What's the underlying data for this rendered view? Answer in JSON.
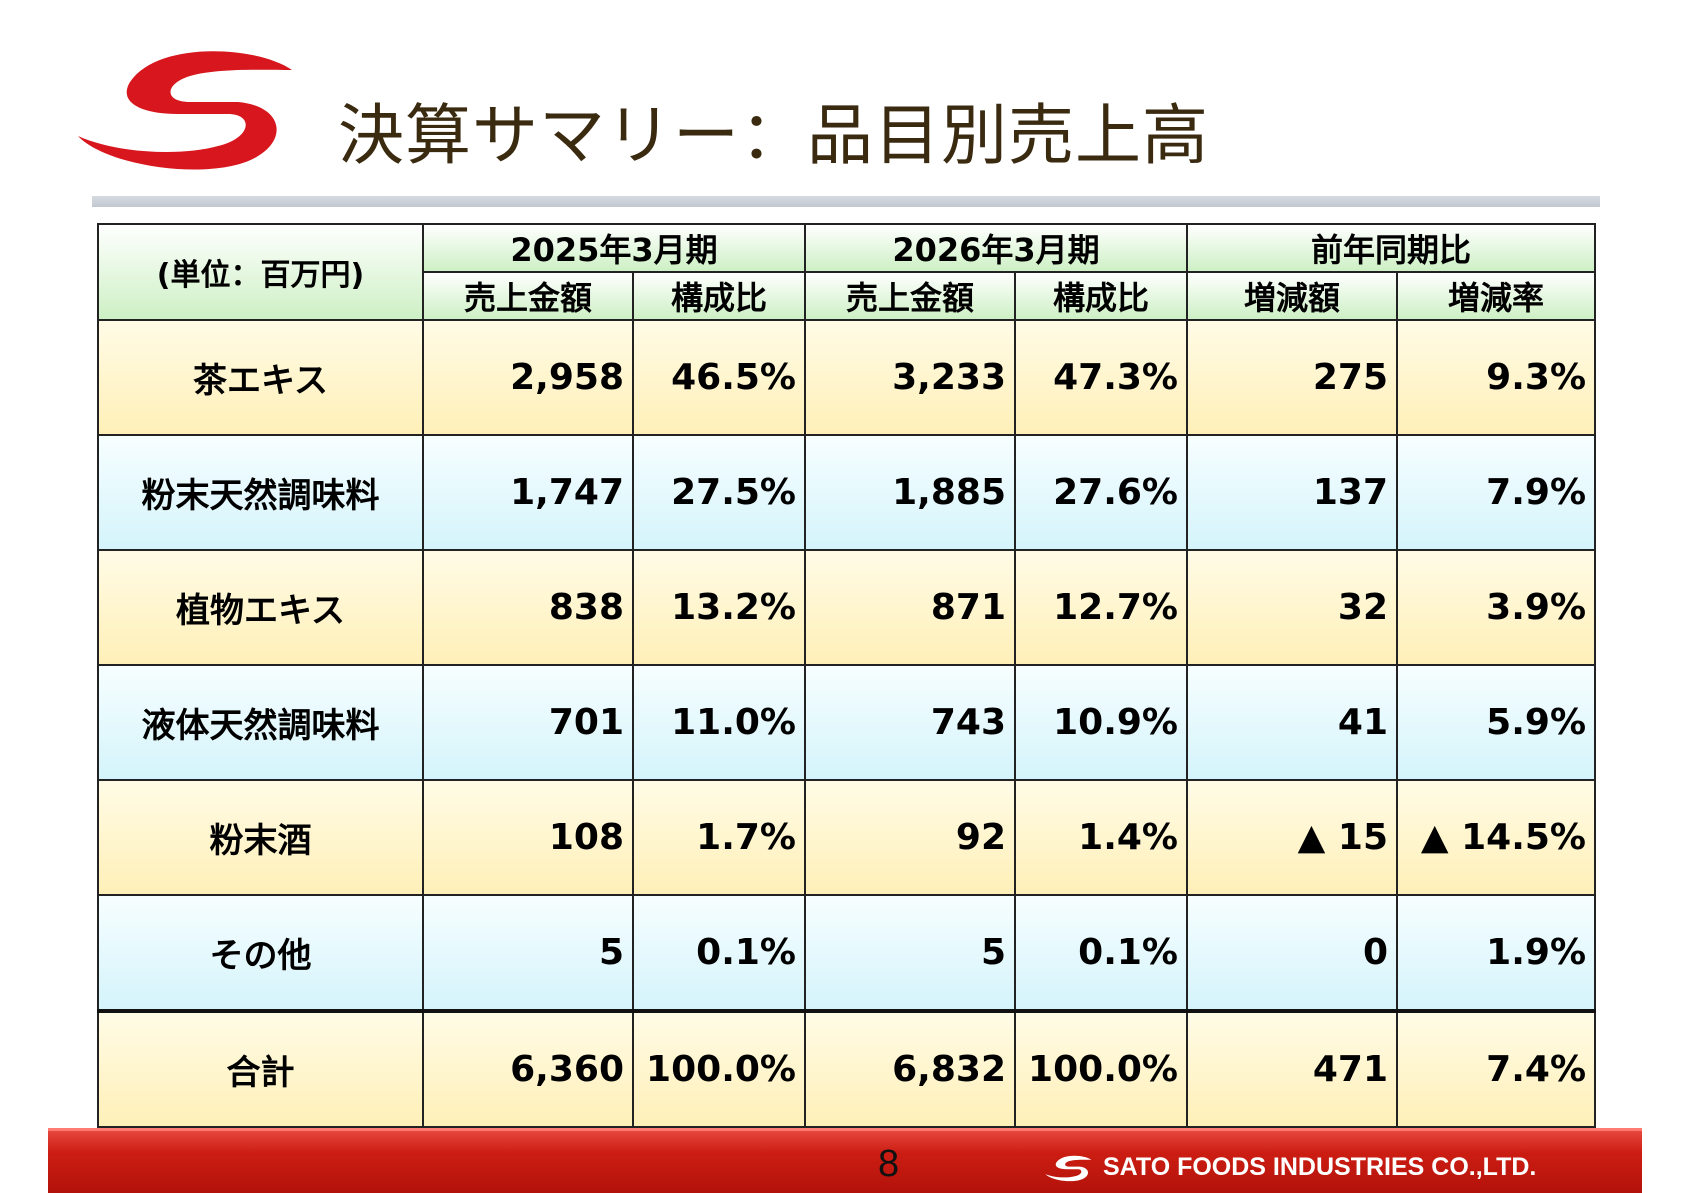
{
  "header": {
    "title": "決算サマリー：品目別売上高",
    "logo_icon": "sato-foods-s-logo-icon",
    "brand_color": "#d7161d"
  },
  "table": {
    "unit_label": "(単位：百万円)",
    "groups": [
      "2025年3月期",
      "2026年3月期",
      "前年同期比"
    ],
    "subheaders": [
      "売上金額",
      "構成比",
      "売上金額",
      "構成比",
      "増減額",
      "増減率"
    ],
    "rows": [
      {
        "name": "茶エキス",
        "sales_2025": "2,958",
        "ratio_2025": "46.5%",
        "sales_2026": "3,233",
        "ratio_2026": "47.3%",
        "change": "275",
        "change_rate": "9.3%"
      },
      {
        "name": "粉末天然調味料",
        "sales_2025": "1,747",
        "ratio_2025": "27.5%",
        "sales_2026": "1,885",
        "ratio_2026": "27.6%",
        "change": "137",
        "change_rate": "7.9%"
      },
      {
        "name": "植物エキス",
        "sales_2025": "838",
        "ratio_2025": "13.2%",
        "sales_2026": "871",
        "ratio_2026": "12.7%",
        "change": "32",
        "change_rate": "3.9%"
      },
      {
        "name": "液体天然調味料",
        "sales_2025": "701",
        "ratio_2025": "11.0%",
        "sales_2026": "743",
        "ratio_2026": "10.9%",
        "change": "41",
        "change_rate": "5.9%"
      },
      {
        "name": "粉末酒",
        "sales_2025": "108",
        "ratio_2025": "1.7%",
        "sales_2026": "92",
        "ratio_2026": "1.4%",
        "change": "▲ 15",
        "change_rate": "▲ 14.5%"
      },
      {
        "name": "その他",
        "sales_2025": "5",
        "ratio_2025": "0.1%",
        "sales_2026": "5",
        "ratio_2026": "0.1%",
        "change": "0",
        "change_rate": "1.9%"
      }
    ],
    "total": {
      "name": "合計",
      "sales_2025": "6,360",
      "ratio_2025": "100.0%",
      "sales_2026": "6,832",
      "ratio_2026": "100.0%",
      "change": "471",
      "change_rate": "7.4%"
    }
  },
  "footer": {
    "page_number": "8",
    "company": "SATO FOODS INDUSTRIES CO.,LTD.",
    "footer_color": "#c81a12"
  }
}
